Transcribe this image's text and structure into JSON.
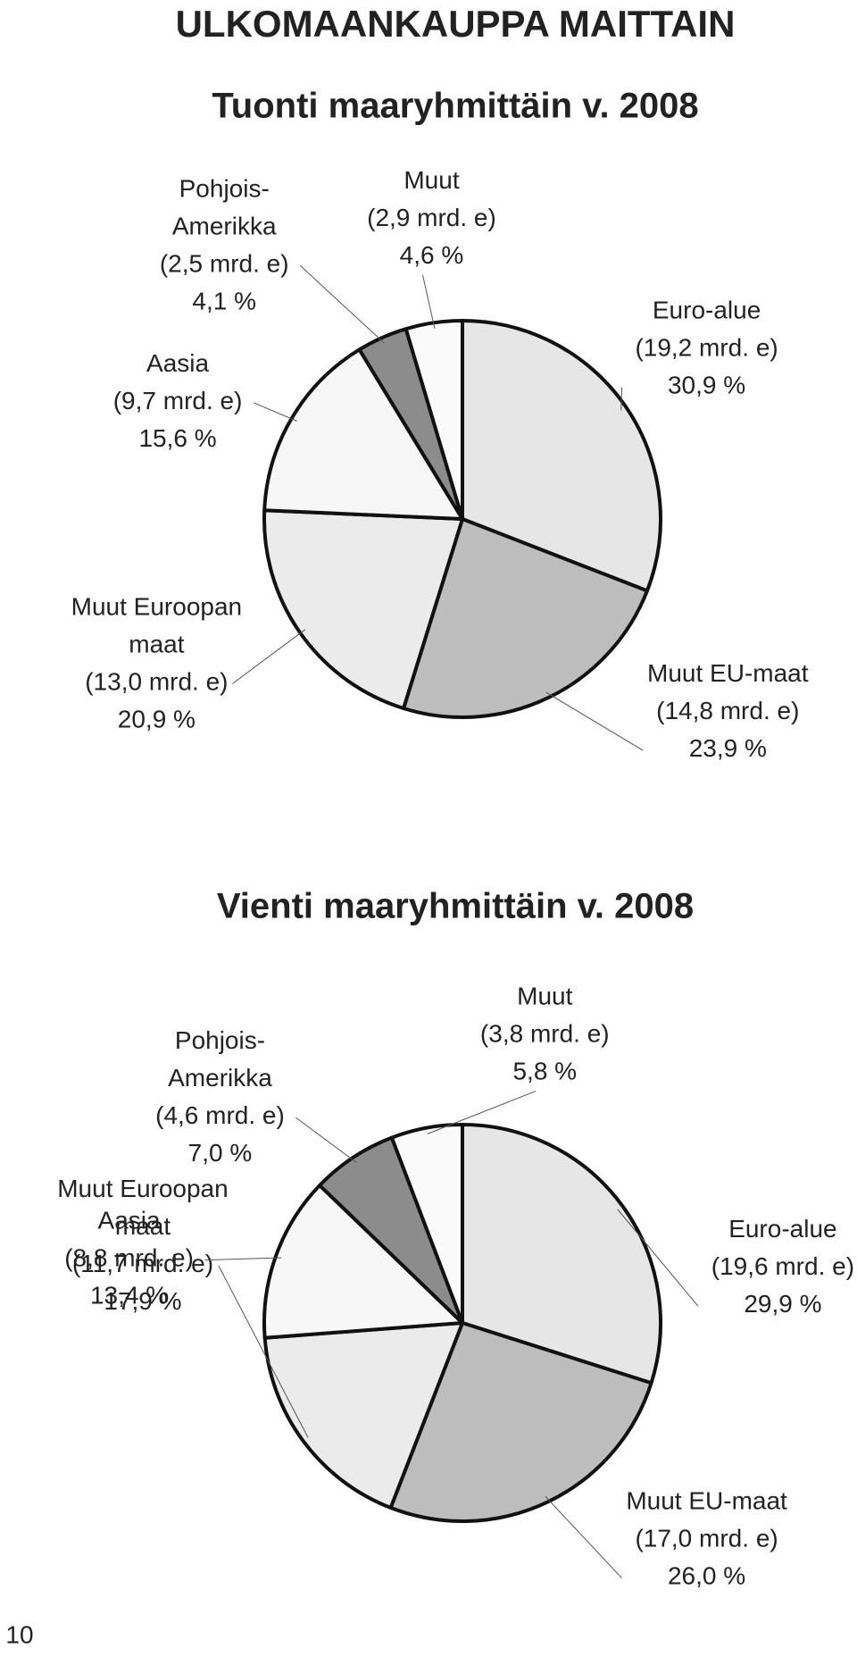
{
  "header": {
    "title": "ULKOMAANKAUPPA MAITTAIN",
    "page_number": "10"
  },
  "chart_data": [
    {
      "type": "pie",
      "title": "Tuonti maaryhmittäin v. 2008",
      "categories": [
        "Euro-alue",
        "Muut EU-maat",
        "Muut Euroopan\nmaat",
        "Aasia",
        "Pohjois-\nAmerikka",
        "Muut"
      ],
      "amount_labels": [
        "(19,2 mrd. e)",
        "(14,8 mrd. e)",
        "(13,0 mrd. e)",
        "(9,7 mrd. e)",
        "(2,5 mrd. e)",
        "(2,9 mrd. e)"
      ],
      "values": [
        30.9,
        23.9,
        20.9,
        15.6,
        4.1,
        4.6
      ],
      "value_labels": [
        "30,9 %",
        "23,9 %",
        "20,9 %",
        "15,6 %",
        "4,1 %",
        "4,6 %"
      ],
      "colors": [
        "#e6e6e6",
        "#bdbdbd",
        "#ebebeb",
        "#f7f7f7",
        "#8c8c8c",
        "#fafafa"
      ]
    },
    {
      "type": "pie",
      "title": "Vienti maaryhmittäin v. 2008",
      "categories": [
        "Euro-alue",
        "Muut EU-maat",
        "Muut Euroopan\nmaat",
        "Aasia",
        "Pohjois-\nAmerikka",
        "Muut"
      ],
      "amount_labels": [
        "(19,6 mrd. e)",
        "(17,0 mrd. e)",
        "(11,7 mrd. e)",
        "(8,8 mrd. e)",
        "(4,6 mrd. e)",
        "(3,8 mrd. e)"
      ],
      "values": [
        29.9,
        26.0,
        17.9,
        13.4,
        7.0,
        5.8
      ],
      "value_labels": [
        "29,9 %",
        "26,0 %",
        "17,9 %",
        "13,4 %",
        "7,0 %",
        "5,8 %"
      ],
      "colors": [
        "#e6e6e6",
        "#bdbdbd",
        "#ebebeb",
        "#f7f7f7",
        "#8c8c8c",
        "#fafafa"
      ]
    }
  ]
}
